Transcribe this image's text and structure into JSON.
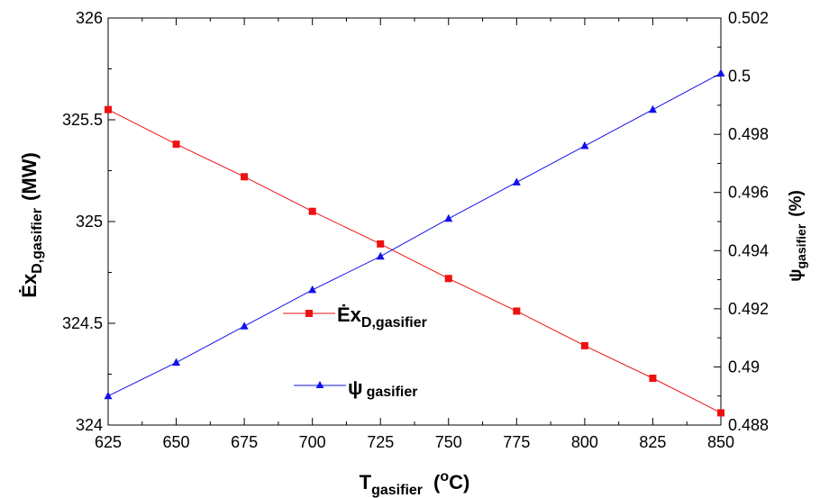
{
  "chart_data": {
    "type": "line",
    "x": [
      625,
      650,
      675,
      700,
      725,
      750,
      775,
      800,
      825,
      850
    ],
    "series": [
      {
        "name": "Ėx D,gasifier",
        "axis": "left",
        "color": "#ee1111",
        "marker": "square",
        "values": [
          325.55,
          325.38,
          325.22,
          325.05,
          324.89,
          324.72,
          324.56,
          324.39,
          324.23,
          324.06
        ]
      },
      {
        "name": "ψ gasifier",
        "axis": "right",
        "color": "#1111ee",
        "marker": "triangle",
        "values": [
          0.489,
          0.49015,
          0.4914,
          0.49265,
          0.4938,
          0.4951,
          0.49635,
          0.4976,
          0.49885,
          0.5001
        ]
      }
    ],
    "xlim": [
      625,
      850
    ],
    "ylim_left": [
      324,
      326
    ],
    "ylim_right": [
      0.488,
      0.502
    ],
    "xticks": [
      "625",
      "650",
      "675",
      "700",
      "725",
      "750",
      "775",
      "800",
      "825",
      "850"
    ],
    "yticks_left": [
      "324",
      "324.5",
      "325",
      "325.5",
      "326"
    ],
    "yticks_right": [
      "0.488",
      "0.49",
      "0.492",
      "0.494",
      "0.496",
      "0.498",
      "0.5",
      "0.502"
    ],
    "xlabel": {
      "main": "T",
      "sub": "gasifier",
      "unit_open": "(",
      "unit_sup": "o",
      "unit_close": "C)"
    },
    "ylabel_left": {
      "main": "Ėx",
      "sub": "D,gasifier",
      "unit": "(MW)"
    },
    "ylabel_right": {
      "main": "ψ",
      "sub": "gasifier",
      "unit": "(%)"
    },
    "legend": {
      "placement": "center-left",
      "entries": [
        {
          "main": "Ėx",
          "sub": "D,gasifier"
        },
        {
          "main": "ψ",
          "sub": "gasifier"
        }
      ]
    },
    "grid": false
  }
}
